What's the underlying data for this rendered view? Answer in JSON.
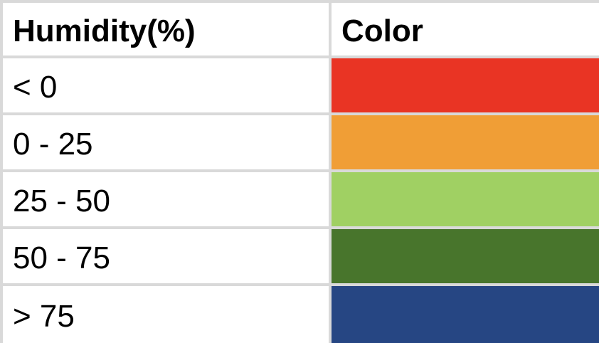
{
  "table": {
    "headers": {
      "humidity": "Humidity(%)",
      "color": "Color"
    },
    "rows": [
      {
        "range": "< 0",
        "color": "#e93424"
      },
      {
        "range": "0 - 25",
        "color": "#f09e36"
      },
      {
        "range": "25 - 50",
        "color": "#a0d063"
      },
      {
        "range": "50 - 75",
        "color": "#48752c"
      },
      {
        "range": "> 75",
        "color": "#264683"
      }
    ]
  }
}
